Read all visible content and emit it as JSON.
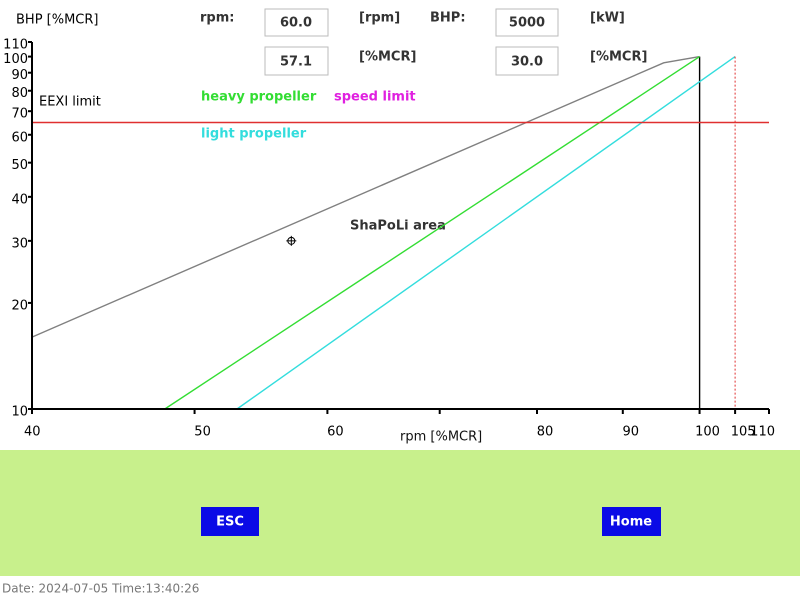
{
  "header": {
    "rpm_label": "rpm:",
    "rpm_value": "60.0",
    "rpm_unit": "[rpm]",
    "bhp_label": "BHP:",
    "bhp_value": "5000",
    "bhp_unit": "[kW]",
    "rpm_pct_value": "57.1",
    "rpm_pct_unit": "[%MCR]",
    "bhp_pct_value": "30.0",
    "bhp_pct_unit": "[%MCR]"
  },
  "chart_data": {
    "type": "line",
    "x_label": "rpm [%MCR]",
    "y_label": "BHP [%MCR]",
    "annotation": "ShaPoLi area",
    "log_x": true,
    "log_y": true,
    "xlim": [
      40,
      110
    ],
    "ylim": [
      10,
      110
    ],
    "xticks": [
      40,
      50,
      60,
      {
        "value": 70,
        "label": null
      },
      80,
      90,
      100,
      105,
      110
    ],
    "yticks": [
      10,
      20,
      30,
      40,
      50,
      60,
      70,
      80,
      90,
      100,
      110
    ],
    "series": [
      {
        "color": "#808080",
        "x": [
          40,
          95.2,
          100
        ],
        "values": [
          16,
          96,
          100
        ]
      },
      {
        "color": "#000000",
        "x": [
          100,
          100
        ],
        "values": [
          100,
          10
        ]
      },
      {
        "name": "heavy propeller",
        "color": "#33dd33",
        "label_color": "#33dd33",
        "x": [
          48,
          100
        ],
        "values": [
          10,
          100
        ]
      },
      {
        "name": "light propeller",
        "color": "#33dddd",
        "label_color": "#33dddd",
        "x": [
          53,
          105
        ],
        "values": [
          10,
          100
        ]
      },
      {
        "name": "EEXI limit",
        "color": "#e03030",
        "label_color": "#000000",
        "x": [
          40,
          110
        ],
        "values": [
          65,
          65
        ]
      },
      {
        "name": "speed limit",
        "color": "#e03030",
        "label_color": "#e020e0",
        "dashed": true,
        "x": [
          105,
          105
        ],
        "values": [
          100,
          10
        ]
      }
    ],
    "point": {
      "x": 57.1,
      "y": 30.0
    }
  },
  "buttons": [
    "ESC",
    "Home"
  ],
  "footer": "Date: 2024-07-05  Time:13:40:26"
}
